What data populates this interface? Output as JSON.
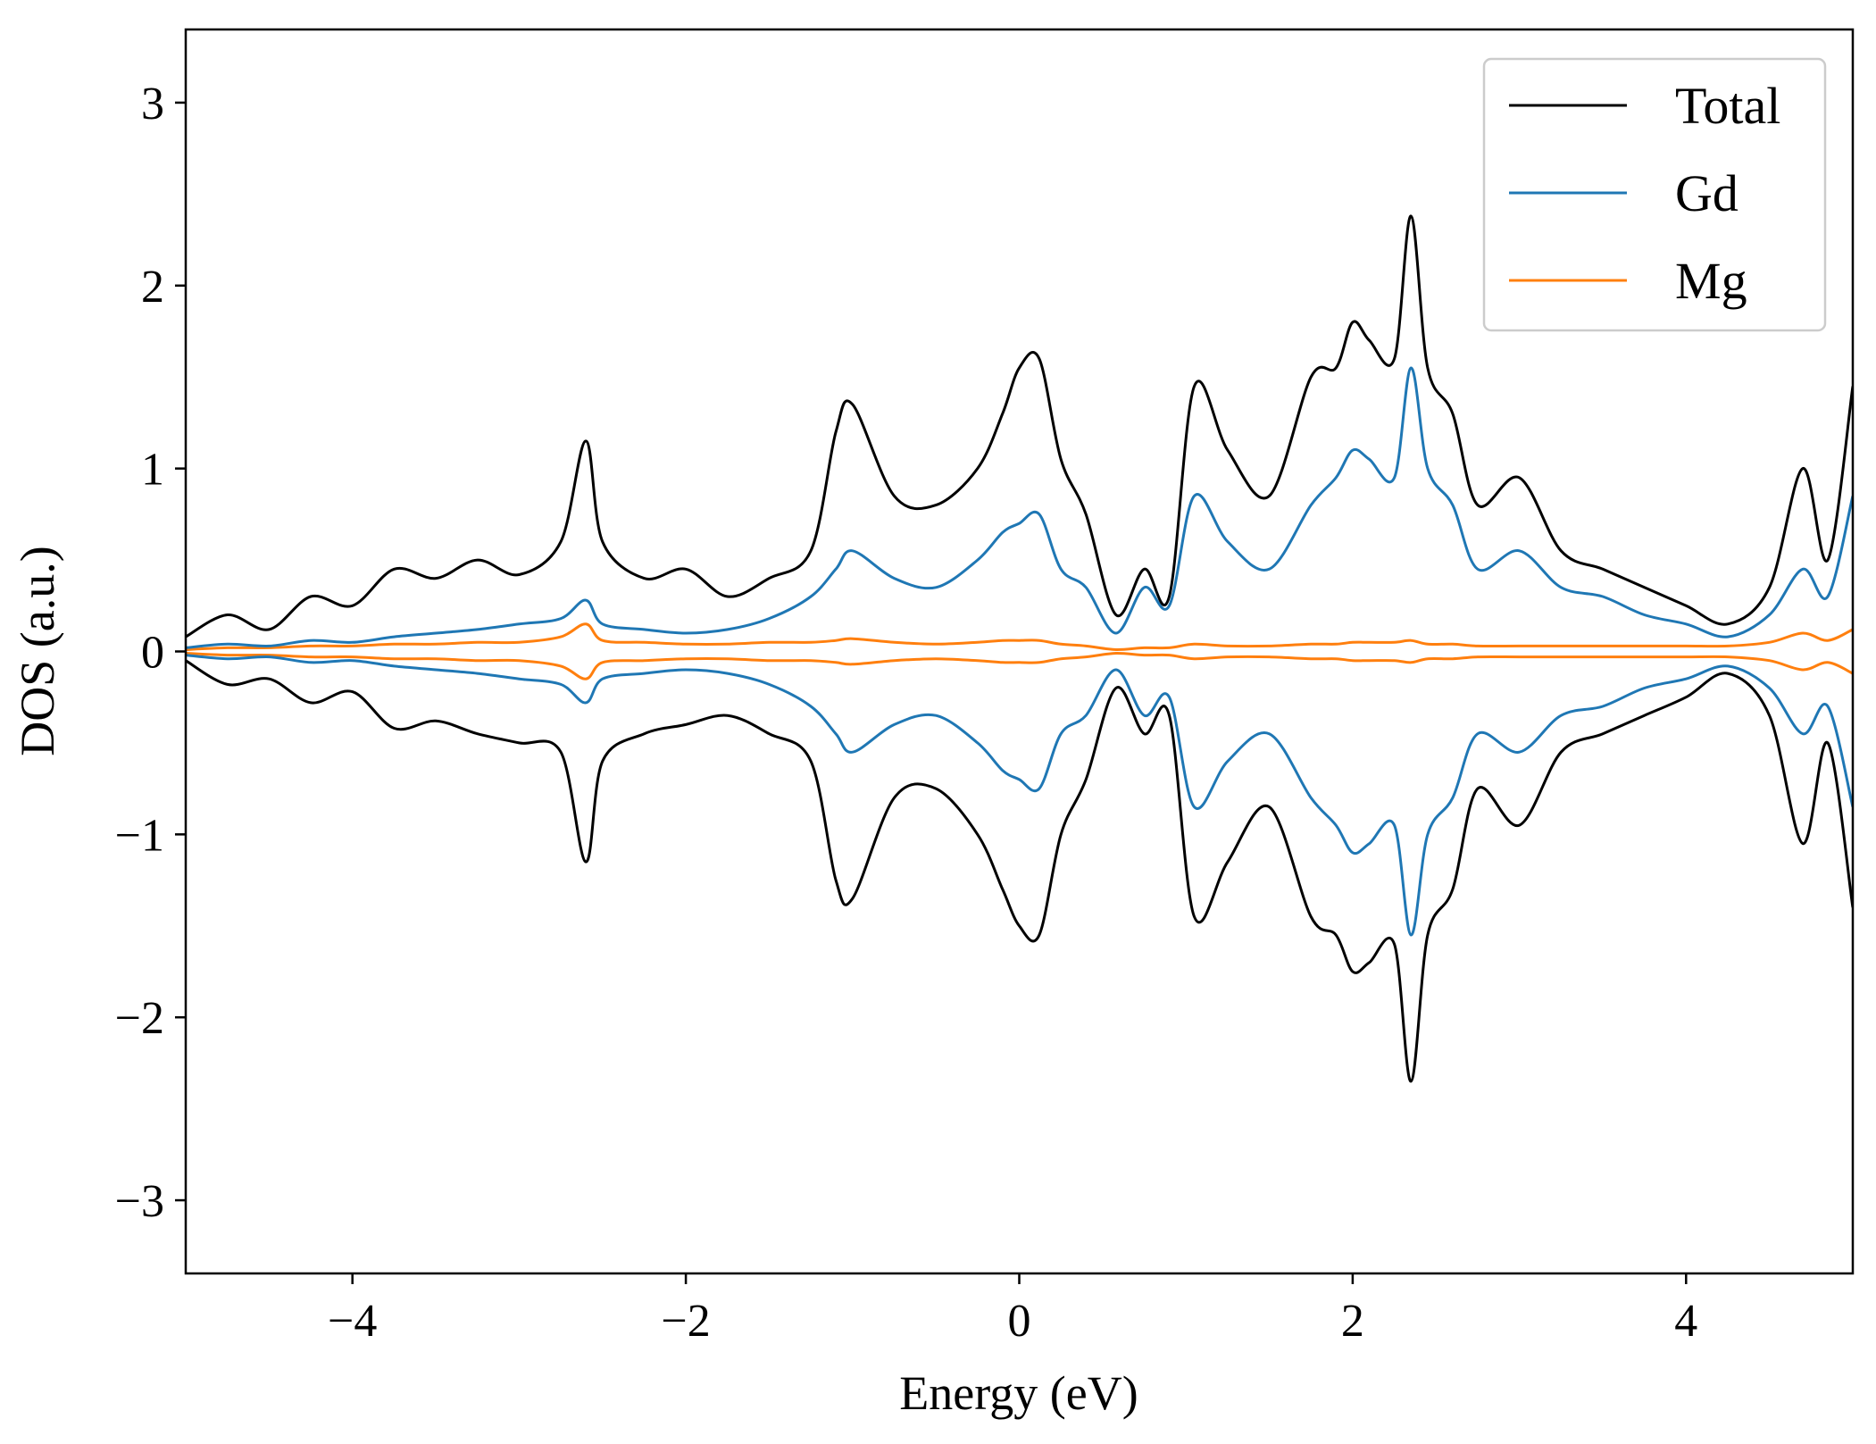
{
  "chart_data": {
    "type": "line",
    "xlabel": "Energy (eV)",
    "ylabel": "DOS (a.u.)",
    "xlim": [
      -5,
      5
    ],
    "ylim": [
      -3.4,
      3.4
    ],
    "xticks": [
      -4,
      -2,
      0,
      2,
      4
    ],
    "xtick_labels": [
      "−4",
      "−2",
      "0",
      "2",
      "4"
    ],
    "yticks": [
      -3,
      -2,
      -1,
      0,
      1,
      2,
      3
    ],
    "ytick_labels": [
      "−3",
      "−2",
      "−1",
      "0",
      "1",
      "2",
      "3"
    ],
    "grid": false,
    "legend_position": "top-right",
    "x": [
      -5.0,
      -4.75,
      -4.5,
      -4.25,
      -4.0,
      -3.75,
      -3.5,
      -3.25,
      -3.0,
      -2.75,
      -2.6,
      -2.5,
      -2.25,
      -2.0,
      -1.75,
      -1.5,
      -1.25,
      -1.1,
      -1.0,
      -0.75,
      -0.5,
      -0.25,
      -0.1,
      0.0,
      0.12,
      0.25,
      0.4,
      0.58,
      0.75,
      0.9,
      1.05,
      1.25,
      1.5,
      1.75,
      1.9,
      2.0,
      2.1,
      2.25,
      2.35,
      2.45,
      2.6,
      2.75,
      3.0,
      3.25,
      3.5,
      3.75,
      4.0,
      4.25,
      4.5,
      4.7,
      4.85,
      5.0
    ],
    "series": [
      {
        "name": "Total",
        "color": "#000000",
        "spin_up": [
          0.08,
          0.2,
          0.12,
          0.3,
          0.25,
          0.45,
          0.4,
          0.5,
          0.42,
          0.6,
          1.15,
          0.6,
          0.4,
          0.45,
          0.3,
          0.4,
          0.55,
          1.2,
          1.35,
          0.85,
          0.8,
          1.0,
          1.3,
          1.55,
          1.6,
          1.05,
          0.75,
          0.2,
          0.45,
          0.3,
          1.45,
          1.1,
          0.85,
          1.5,
          1.55,
          1.8,
          1.7,
          1.6,
          2.38,
          1.55,
          1.3,
          0.8,
          0.95,
          0.55,
          0.45,
          0.35,
          0.25,
          0.15,
          0.35,
          1.0,
          0.5,
          1.45
        ],
        "spin_down": [
          -0.05,
          -0.18,
          -0.15,
          -0.28,
          -0.22,
          -0.42,
          -0.38,
          -0.45,
          -0.5,
          -0.55,
          -1.15,
          -0.6,
          -0.45,
          -0.4,
          -0.35,
          -0.45,
          -0.6,
          -1.25,
          -1.35,
          -0.8,
          -0.75,
          -1.0,
          -1.3,
          -1.5,
          -1.55,
          -1.0,
          -0.7,
          -0.2,
          -0.45,
          -0.35,
          -1.45,
          -1.15,
          -0.85,
          -1.45,
          -1.55,
          -1.75,
          -1.7,
          -1.6,
          -2.35,
          -1.55,
          -1.3,
          -0.75,
          -0.95,
          -0.55,
          -0.45,
          -0.35,
          -0.25,
          -0.12,
          -0.35,
          -1.05,
          -0.5,
          -1.4
        ]
      },
      {
        "name": "Gd",
        "color": "#1f77b4",
        "spin_up": [
          0.02,
          0.04,
          0.03,
          0.06,
          0.05,
          0.08,
          0.1,
          0.12,
          0.15,
          0.18,
          0.28,
          0.15,
          0.12,
          0.1,
          0.12,
          0.18,
          0.3,
          0.45,
          0.55,
          0.4,
          0.35,
          0.5,
          0.65,
          0.7,
          0.75,
          0.45,
          0.35,
          0.1,
          0.35,
          0.25,
          0.85,
          0.6,
          0.45,
          0.8,
          0.95,
          1.1,
          1.05,
          0.95,
          1.55,
          1.0,
          0.8,
          0.45,
          0.55,
          0.35,
          0.3,
          0.2,
          0.15,
          0.08,
          0.2,
          0.45,
          0.3,
          0.85
        ],
        "spin_down": [
          -0.02,
          -0.04,
          -0.03,
          -0.06,
          -0.05,
          -0.08,
          -0.1,
          -0.12,
          -0.15,
          -0.18,
          -0.28,
          -0.15,
          -0.12,
          -0.1,
          -0.12,
          -0.18,
          -0.3,
          -0.45,
          -0.55,
          -0.4,
          -0.35,
          -0.5,
          -0.65,
          -0.7,
          -0.75,
          -0.45,
          -0.35,
          -0.1,
          -0.35,
          -0.25,
          -0.85,
          -0.6,
          -0.45,
          -0.8,
          -0.95,
          -1.1,
          -1.05,
          -0.95,
          -1.55,
          -1.0,
          -0.8,
          -0.45,
          -0.55,
          -0.35,
          -0.3,
          -0.2,
          -0.15,
          -0.08,
          -0.2,
          -0.45,
          -0.3,
          -0.85
        ]
      },
      {
        "name": "Mg",
        "color": "#ff7f0e",
        "spin_up": [
          0.01,
          0.02,
          0.02,
          0.03,
          0.03,
          0.04,
          0.04,
          0.05,
          0.05,
          0.08,
          0.15,
          0.06,
          0.05,
          0.04,
          0.04,
          0.05,
          0.05,
          0.06,
          0.07,
          0.05,
          0.04,
          0.05,
          0.06,
          0.06,
          0.06,
          0.04,
          0.03,
          0.01,
          0.02,
          0.02,
          0.04,
          0.03,
          0.03,
          0.04,
          0.04,
          0.05,
          0.05,
          0.05,
          0.06,
          0.04,
          0.04,
          0.03,
          0.03,
          0.03,
          0.03,
          0.03,
          0.03,
          0.03,
          0.05,
          0.1,
          0.06,
          0.12
        ],
        "spin_down": [
          -0.01,
          -0.02,
          -0.02,
          -0.03,
          -0.03,
          -0.04,
          -0.04,
          -0.05,
          -0.05,
          -0.08,
          -0.15,
          -0.06,
          -0.05,
          -0.04,
          -0.04,
          -0.05,
          -0.05,
          -0.06,
          -0.07,
          -0.05,
          -0.04,
          -0.05,
          -0.06,
          -0.06,
          -0.06,
          -0.04,
          -0.03,
          -0.01,
          -0.02,
          -0.02,
          -0.04,
          -0.03,
          -0.03,
          -0.04,
          -0.04,
          -0.05,
          -0.05,
          -0.05,
          -0.06,
          -0.04,
          -0.04,
          -0.03,
          -0.03,
          -0.03,
          -0.03,
          -0.03,
          -0.03,
          -0.03,
          -0.05,
          -0.1,
          -0.06,
          -0.12
        ]
      }
    ]
  }
}
